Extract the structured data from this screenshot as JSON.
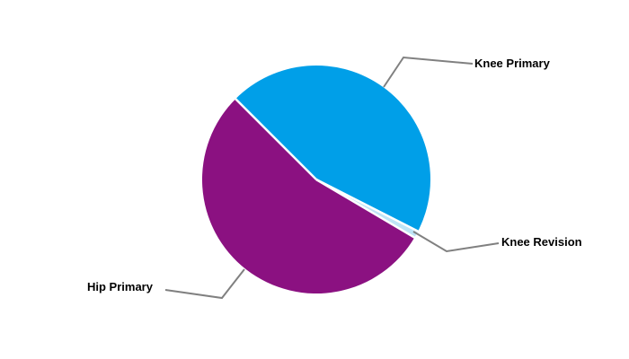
{
  "chart_data": {
    "type": "pie",
    "title": "",
    "slices": [
      {
        "label": "Knee Primary",
        "value": 45,
        "percent_estimate": "45%",
        "color": "#009FE8"
      },
      {
        "label": "Knee Revision",
        "value": 1,
        "percent_estimate": "1%",
        "color": "#BEE4F6"
      },
      {
        "label": "Hip Primary",
        "value": 54,
        "percent_estimate": "54%",
        "color": "#8B1181"
      }
    ],
    "start_angle_deg": -45,
    "direction": "clockwise",
    "separator_color": "#FFFFFF",
    "leader_line_color": "#808080",
    "label_color": "#000000",
    "background_color": "#FFFFFF",
    "legend": "none",
    "data_labels": "none"
  }
}
